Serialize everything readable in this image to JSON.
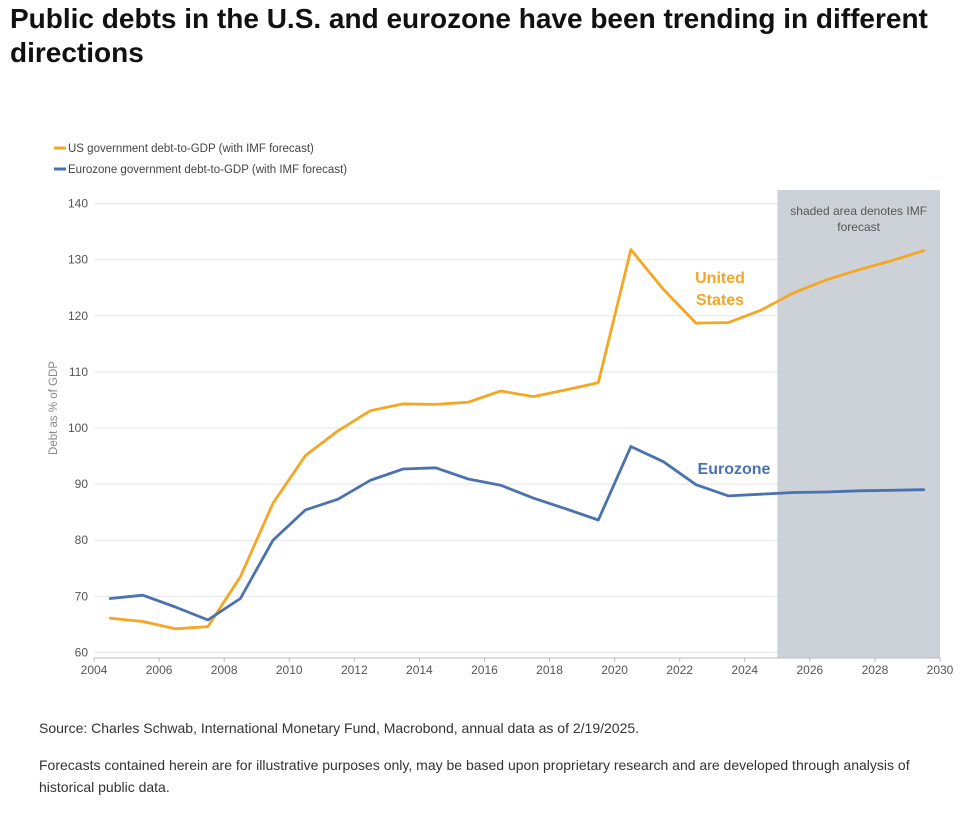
{
  "page": {
    "title": "Public debts in the U.S. and eurozone have been trending in different directions",
    "source": "Source: Charles Schwab, International Monetary Fund, Macrobond, annual data as of 2/19/2025.",
    "disclaimer": "Forecasts contained herein are for illustrative purposes only, may be based upon proprietary research and are developed through analysis of historical public data."
  },
  "chart_data": {
    "type": "line",
    "title": "",
    "xlabel": "",
    "ylabel": "Debt as % of GDP",
    "xlim": [
      2004,
      2030
    ],
    "ylim": [
      59,
      141
    ],
    "x_ticks": [
      2004,
      2006,
      2008,
      2010,
      2012,
      2014,
      2016,
      2018,
      2020,
      2022,
      2024,
      2026,
      2028,
      2030
    ],
    "y_ticks": [
      60,
      70,
      80,
      90,
      100,
      110,
      120,
      130,
      140
    ],
    "grid": "horizontal",
    "legend_position": "top-left",
    "forecast_region": {
      "from": 2025,
      "to": 2030,
      "label": "shaded area denotes IMF forecast"
    },
    "series": [
      {
        "name": "US government debt-to-GDP (with IMF forecast)",
        "short_label": "United States",
        "color": "#F5A623",
        "points": [
          [
            2004.5,
            66.1
          ],
          [
            2005.5,
            65.5
          ],
          [
            2006.5,
            64.2
          ],
          [
            2007.5,
            64.6
          ],
          [
            2008.5,
            73.5
          ],
          [
            2009.5,
            86.6
          ],
          [
            2010.5,
            95.1
          ],
          [
            2011.5,
            99.5
          ],
          [
            2012.5,
            103.1
          ],
          [
            2013.5,
            104.3
          ],
          [
            2014.5,
            104.2
          ],
          [
            2015.5,
            104.6
          ],
          [
            2016.5,
            106.6
          ],
          [
            2017.5,
            105.6
          ],
          [
            2018.5,
            106.8
          ],
          [
            2019.5,
            108.1
          ],
          [
            2020.5,
            131.8
          ],
          [
            2021.5,
            124.7
          ],
          [
            2022.5,
            118.7
          ],
          [
            2023.5,
            118.8
          ],
          [
            2024.5,
            121.0
          ],
          [
            2025.5,
            124.1
          ],
          [
            2026.5,
            126.4
          ],
          [
            2027.5,
            128.2
          ],
          [
            2028.5,
            129.8
          ],
          [
            2029.5,
            131.6
          ]
        ]
      },
      {
        "name": "Eurozone government debt-to-GDP (with IMF forecast)",
        "short_label": "Eurozone",
        "color": "#4A72B0",
        "points": [
          [
            2004.5,
            69.6
          ],
          [
            2005.5,
            70.2
          ],
          [
            2006.5,
            68.1
          ],
          [
            2007.5,
            65.8
          ],
          [
            2008.5,
            69.6
          ],
          [
            2009.5,
            80.0
          ],
          [
            2010.5,
            85.4
          ],
          [
            2011.5,
            87.3
          ],
          [
            2012.5,
            90.7
          ],
          [
            2013.5,
            92.7
          ],
          [
            2014.5,
            92.9
          ],
          [
            2015.5,
            90.9
          ],
          [
            2016.5,
            89.8
          ],
          [
            2017.5,
            87.5
          ],
          [
            2018.5,
            85.6
          ],
          [
            2019.5,
            83.6
          ],
          [
            2020.5,
            96.7
          ],
          [
            2021.5,
            94.0
          ],
          [
            2022.5,
            89.9
          ],
          [
            2023.5,
            87.9
          ],
          [
            2024.5,
            88.2
          ],
          [
            2025.5,
            88.5
          ],
          [
            2026.5,
            88.6
          ],
          [
            2027.5,
            88.8
          ],
          [
            2028.5,
            88.9
          ],
          [
            2029.5,
            89.0
          ]
        ]
      }
    ]
  }
}
